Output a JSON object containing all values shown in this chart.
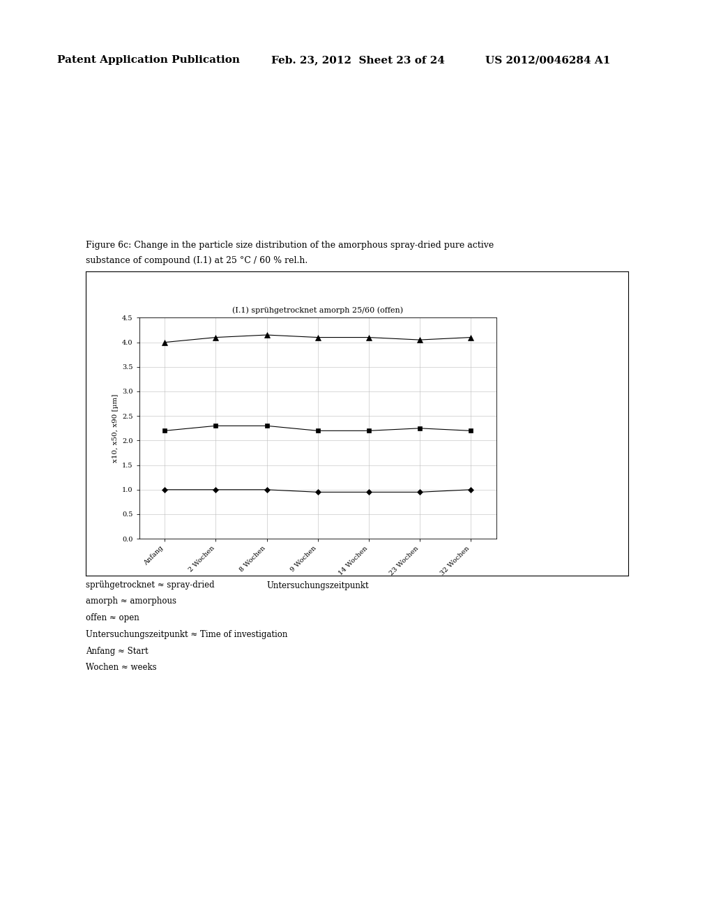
{
  "title_chart": "(I.1) sprühgetrocknet amorph 25/60 (offen)",
  "figure_caption_line1": "Figure 6c: Change in the particle size distribution of the amorphous spray-dried pure active",
  "figure_caption_line2": "substance of compound (I.1) at 25 °C / 60 % rel.h.",
  "xlabel": "Untersuchungszeitpunkt",
  "ylabel": "x10, x50, x90 [µm]",
  "x_labels": [
    "Anfang",
    "2 Wochen",
    "8 Wochen",
    "9 Wochen",
    "14 Wochen",
    "23 Wochen",
    "32 Wochen"
  ],
  "ylim": [
    0.0,
    4.5
  ],
  "yticks": [
    0.0,
    0.5,
    1.0,
    1.5,
    2.0,
    2.5,
    3.0,
    3.5,
    4.0,
    4.5
  ],
  "series_diamond": [
    1.0,
    1.0,
    1.0,
    0.95,
    0.95,
    0.95,
    1.0
  ],
  "series_square": [
    2.2,
    2.3,
    2.3,
    2.2,
    2.2,
    2.25,
    2.2
  ],
  "series_triangle": [
    4.0,
    4.1,
    4.15,
    4.1,
    4.1,
    4.05,
    4.1
  ],
  "footer_lines": [
    "sprühgetrocknet ≈ spray-dried",
    "amorph ≈ amorphous",
    "offen ≈ open",
    "Untersuchungszeitpunkt ≈ Time of investigation",
    "Anfang ≈ Start",
    "Wochen ≈ weeks"
  ],
  "background_color": "#ffffff",
  "plot_bg_color": "#ffffff",
  "line_color": "#000000",
  "marker_color": "#000000",
  "grid_color": "#bbbbbb",
  "header_left": "Patent Application Publication",
  "header_mid": "Feb. 23, 2012  Sheet 23 of 24",
  "header_right": "US 2012/0046284 A1"
}
